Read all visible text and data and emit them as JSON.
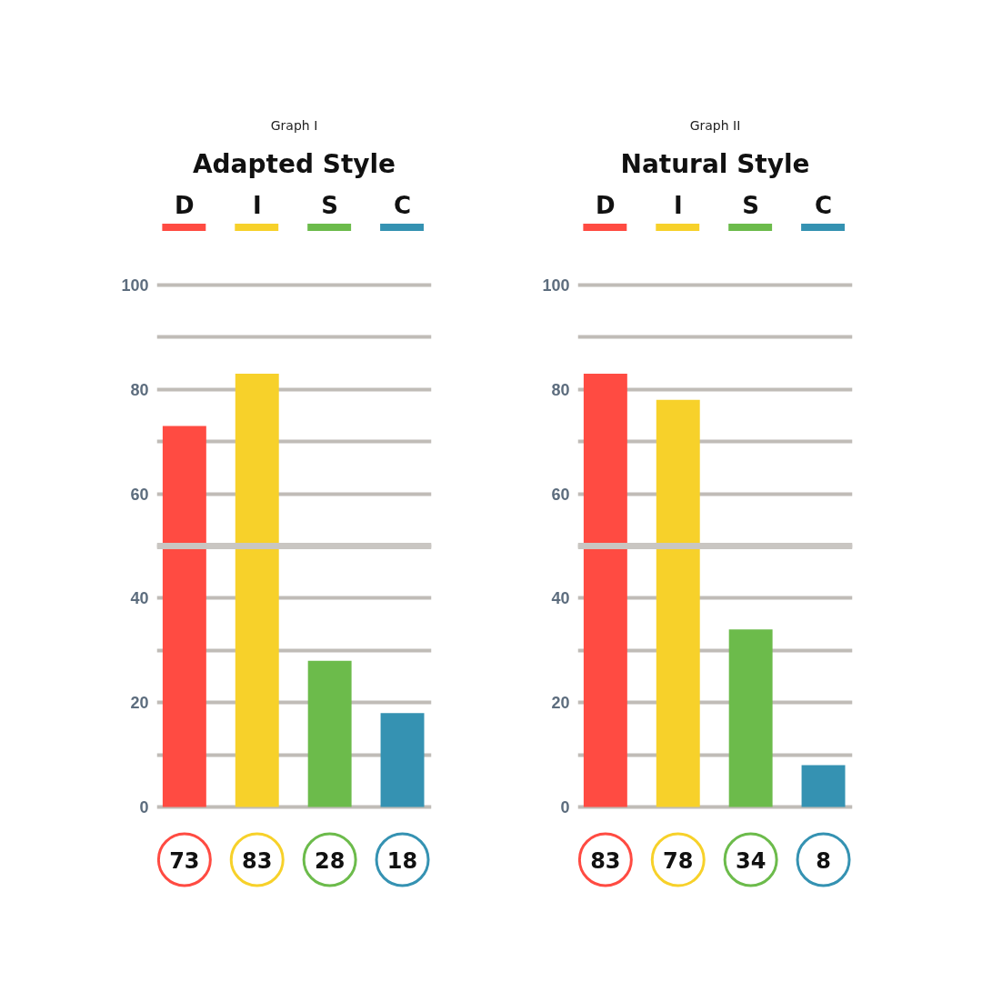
{
  "chart_data": [
    {
      "type": "bar",
      "subtitle": "Graph I",
      "title": "Adapted Style",
      "categories": [
        "D",
        "I",
        "S",
        "C"
      ],
      "values": [
        73,
        83,
        28,
        18
      ],
      "colors": [
        "#ff4b42",
        "#f7d12a",
        "#6cbb4b",
        "#3592b2"
      ],
      "ylim": [
        0,
        100
      ],
      "yticks": [
        0,
        {
          "value": 10,
          "label": null
        },
        20,
        {
          "value": 30,
          "label": null
        },
        40,
        {
          "value": 50,
          "label": null
        },
        60,
        {
          "value": 70,
          "label": null
        },
        80,
        {
          "value": 90,
          "label": null
        },
        100
      ],
      "grid": "y",
      "data_labels": true,
      "ref_lines": [
        {
          "axis": "y",
          "value": 50,
          "color": "#c9c6c2"
        }
      ]
    },
    {
      "type": "bar",
      "subtitle": "Graph II",
      "title": "Natural Style",
      "categories": [
        "D",
        "I",
        "S",
        "C"
      ],
      "values": [
        83,
        78,
        34,
        8
      ],
      "colors": [
        "#ff4b42",
        "#f7d12a",
        "#6cbb4b",
        "#3592b2"
      ],
      "ylim": [
        0,
        100
      ],
      "yticks": [
        0,
        {
          "value": 10,
          "label": null
        },
        20,
        {
          "value": 30,
          "label": null
        },
        40,
        {
          "value": 50,
          "label": null
        },
        60,
        {
          "value": 70,
          "label": null
        },
        80,
        {
          "value": 90,
          "label": null
        },
        100
      ],
      "grid": "y",
      "data_labels": true,
      "ref_lines": [
        {
          "axis": "y",
          "value": 50,
          "color": "#c9c6c2"
        }
      ]
    }
  ]
}
